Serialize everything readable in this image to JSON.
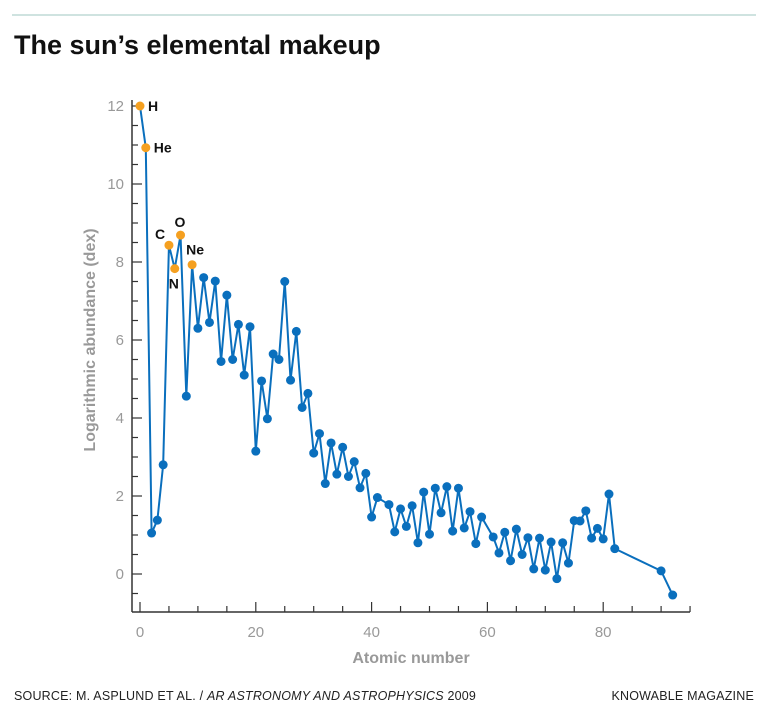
{
  "title": "The sun’s elemental makeup",
  "footer": {
    "source_prefix": "SOURCE: M. ASPLUND ET AL. / ",
    "source_journal": "AR ASTRONOMY AND ASTROPHYSICS",
    "source_year": " 2009",
    "brand": "KNOWABLE MAGAZINE"
  },
  "colors": {
    "series": "#0a6fbd",
    "highlight": "#f5a020",
    "axis": "#333333",
    "labels": "#999999",
    "rule": "#cfe3e0"
  },
  "chart_data": {
    "type": "line",
    "title": "The sun’s elemental makeup",
    "xlabel": "Atomic number",
    "ylabel": "Logarithmic abundance (dex)",
    "xlim": [
      -1,
      95
    ],
    "ylim": [
      -1,
      12.2
    ],
    "xticks": [
      0,
      20,
      40,
      60,
      80
    ],
    "yticks": [
      0,
      2,
      4,
      6,
      8,
      10,
      12
    ],
    "grid": false,
    "points": [
      {
        "x": 0,
        "y": 12,
        "label": "H"
      },
      {
        "x": 1,
        "y": 10.93,
        "label": "He"
      },
      {
        "x": 2,
        "y": 1.05
      },
      {
        "x": 3,
        "y": 1.38
      },
      {
        "x": 4,
        "y": 2.8
      },
      {
        "x": 5,
        "y": 8.43,
        "label": "C"
      },
      {
        "x": 6,
        "y": 7.83,
        "label": "N"
      },
      {
        "x": 7,
        "y": 8.69,
        "label": "O"
      },
      {
        "x": 8,
        "y": 4.56
      },
      {
        "x": 9,
        "y": 7.93,
        "label": "Ne"
      },
      {
        "x": 10,
        "y": 6.3
      },
      {
        "x": 11,
        "y": 7.6
      },
      {
        "x": 12,
        "y": 6.45
      },
      {
        "x": 13,
        "y": 7.51
      },
      {
        "x": 14,
        "y": 5.45
      },
      {
        "x": 15,
        "y": 7.15
      },
      {
        "x": 16,
        "y": 5.5
      },
      {
        "x": 17,
        "y": 6.4
      },
      {
        "x": 18,
        "y": 5.1
      },
      {
        "x": 19,
        "y": 6.34
      },
      {
        "x": 20,
        "y": 3.15
      },
      {
        "x": 21,
        "y": 4.95
      },
      {
        "x": 22,
        "y": 3.98
      },
      {
        "x": 23,
        "y": 5.64
      },
      {
        "x": 24,
        "y": 5.5
      },
      {
        "x": 25,
        "y": 7.5
      },
      {
        "x": 26,
        "y": 4.97
      },
      {
        "x": 27,
        "y": 6.22
      },
      {
        "x": 28,
        "y": 4.27
      },
      {
        "x": 29,
        "y": 4.63
      },
      {
        "x": 30,
        "y": 3.1
      },
      {
        "x": 31,
        "y": 3.6
      },
      {
        "x": 32,
        "y": 2.32
      },
      {
        "x": 33,
        "y": 3.36
      },
      {
        "x": 34,
        "y": 2.56
      },
      {
        "x": 35,
        "y": 3.25
      },
      {
        "x": 36,
        "y": 2.5
      },
      {
        "x": 37,
        "y": 2.88
      },
      {
        "x": 38,
        "y": 2.21
      },
      {
        "x": 39,
        "y": 2.58
      },
      {
        "x": 40,
        "y": 1.46
      },
      {
        "x": 41,
        "y": 1.96
      },
      {
        "x": 43,
        "y": 1.78
      },
      {
        "x": 44,
        "y": 1.08
      },
      {
        "x": 45,
        "y": 1.67
      },
      {
        "x": 46,
        "y": 1.22
      },
      {
        "x": 47,
        "y": 1.75
      },
      {
        "x": 48,
        "y": 0.8
      },
      {
        "x": 49,
        "y": 2.1
      },
      {
        "x": 50,
        "y": 1.02
      },
      {
        "x": 51,
        "y": 2.2
      },
      {
        "x": 52,
        "y": 1.57
      },
      {
        "x": 53,
        "y": 2.24
      },
      {
        "x": 54,
        "y": 1.1
      },
      {
        "x": 55,
        "y": 2.2
      },
      {
        "x": 56,
        "y": 1.18
      },
      {
        "x": 57,
        "y": 1.6
      },
      {
        "x": 58,
        "y": 0.78
      },
      {
        "x": 59,
        "y": 1.46
      },
      {
        "x": 61,
        "y": 0.95
      },
      {
        "x": 62,
        "y": 0.54
      },
      {
        "x": 63,
        "y": 1.07
      },
      {
        "x": 64,
        "y": 0.34
      },
      {
        "x": 65,
        "y": 1.15
      },
      {
        "x": 66,
        "y": 0.5
      },
      {
        "x": 67,
        "y": 0.93
      },
      {
        "x": 68,
        "y": 0.13
      },
      {
        "x": 69,
        "y": 0.92
      },
      {
        "x": 70,
        "y": 0.1
      },
      {
        "x": 71,
        "y": 0.82
      },
      {
        "x": 72,
        "y": -0.12
      },
      {
        "x": 73,
        "y": 0.8
      },
      {
        "x": 74,
        "y": 0.28
      },
      {
        "x": 75,
        "y": 1.37
      },
      {
        "x": 76,
        "y": 1.36
      },
      {
        "x": 77,
        "y": 1.62
      },
      {
        "x": 78,
        "y": 0.92
      },
      {
        "x": 79,
        "y": 1.17
      },
      {
        "x": 80,
        "y": 0.9
      },
      {
        "x": 81,
        "y": 2.05
      },
      {
        "x": 82,
        "y": 0.65
      },
      {
        "x": 90,
        "y": 0.08
      },
      {
        "x": 92,
        "y": -0.54
      }
    ]
  }
}
